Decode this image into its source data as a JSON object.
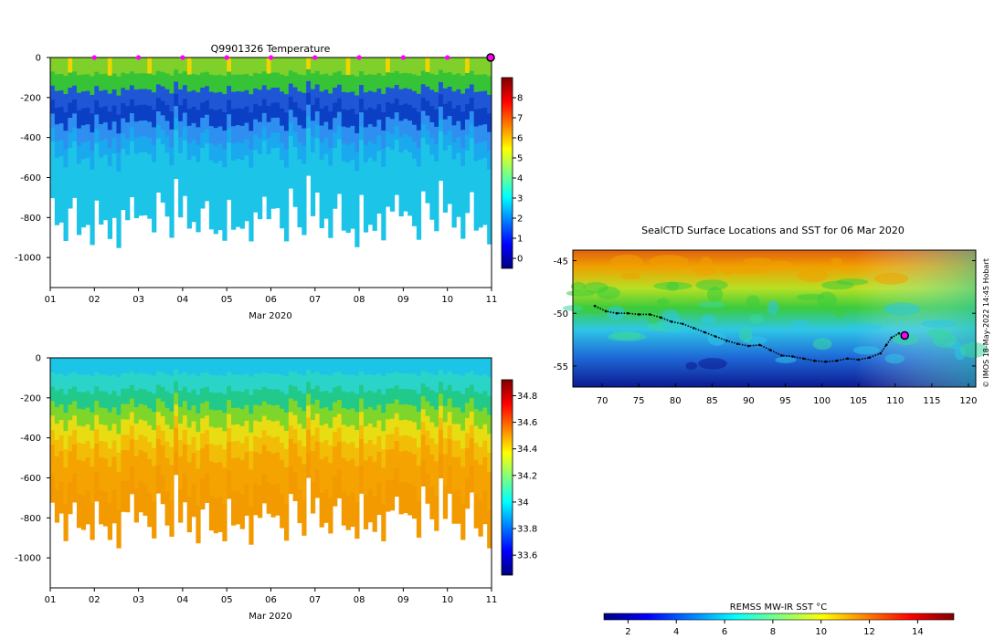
{
  "colors": {
    "jet": [
      "#00007f",
      "#0000ff",
      "#007fff",
      "#00ffff",
      "#7fff7f",
      "#ffff00",
      "#ff7f00",
      "#ff0000",
      "#7f0000"
    ],
    "profile": [
      "#0b1f9e",
      "#1f56d6",
      "#2f8ff0",
      "#1cc4e8",
      "#21c98a",
      "#36c436",
      "#9bd81a",
      "#ecd500",
      "#f5a300",
      "#e56a0b"
    ],
    "sst": [
      "#0c0c82",
      "#1a3acf",
      "#2f7fe8",
      "#2ec6e6",
      "#39d7a0",
      "#3ccc3c",
      "#a8e020",
      "#ffe600",
      "#ff9a1a",
      "#d45a0a",
      "#a01000"
    ],
    "marker": "#ff00ff",
    "track": "#000000"
  },
  "chart_data": [
    {
      "id": "temperature",
      "type": "heatmap",
      "title": "Q9901326  Temperature",
      "xlabel": "Mar 2020",
      "ylabel": "",
      "x_ticks": [
        "01",
        "02",
        "03",
        "04",
        "05",
        "06",
        "07",
        "08",
        "09",
        "10",
        "11"
      ],
      "xlim": [
        1,
        11
      ],
      "y_ticks": [
        0,
        -200,
        -400,
        -600,
        -800,
        -1000
      ],
      "ylim": [
        -1150,
        0
      ],
      "colorbar": {
        "ticks": [
          "0",
          "1",
          "2",
          "3",
          "4",
          "5",
          "6",
          "7",
          "8"
        ],
        "range": [
          -0.5,
          9
        ],
        "label": ""
      },
      "surface_markers_days": [
        2,
        3,
        4,
        5,
        6,
        7,
        8,
        9,
        10
      ],
      "current_position_day": 11,
      "profile_count": 100,
      "max_depth_pattern": [
        -700,
        -840,
        -800,
        -900,
        -750,
        -700,
        -860,
        -870,
        -840,
        -930,
        -700,
        -850,
        -820,
        -880,
        -800,
        -940,
        -770,
        -790,
        -700,
        -800,
        -770,
        -760,
        -830,
        -900,
        -650,
        -720,
        -820,
        -880,
        -600,
        -800
      ]
    },
    {
      "id": "salinity",
      "type": "heatmap",
      "title": "",
      "xlabel": "Mar 2020",
      "ylabel": "",
      "x_ticks": [
        "01",
        "02",
        "03",
        "04",
        "05",
        "06",
        "07",
        "08",
        "09",
        "10",
        "11"
      ],
      "xlim": [
        1,
        11
      ],
      "y_ticks": [
        0,
        -200,
        -400,
        -600,
        -800,
        -1000
      ],
      "ylim": [
        -1150,
        0
      ],
      "colorbar": {
        "ticks": [
          "33.6",
          "33.8",
          "34",
          "34.2",
          "34.4",
          "34.6",
          "34.8"
        ],
        "range": [
          33.45,
          34.92
        ],
        "label": ""
      }
    },
    {
      "id": "sst_map",
      "type": "heatmap",
      "title": "SealCTD Surface Locations and SST for 06 Mar 2020",
      "x_ticks": [
        "70",
        "75",
        "80",
        "85",
        "90",
        "95",
        "100",
        "105",
        "110",
        "115",
        "120"
      ],
      "xlim": [
        66,
        121
      ],
      "y_ticks": [
        "-45",
        "-50",
        "-55"
      ],
      "ylim": [
        -57,
        -44
      ],
      "colorbar": {
        "ticks": [
          "2",
          "4",
          "6",
          "8",
          "10",
          "12",
          "14"
        ],
        "range": [
          1,
          15.5
        ],
        "label": "REMSS MW-IR SST °C"
      },
      "track_lon": [
        69,
        70.5,
        72,
        73.5,
        75,
        76.5,
        78,
        79.5,
        81,
        82.5,
        84,
        85.5,
        87,
        88.5,
        90,
        91.5,
        93,
        94.5,
        96,
        97.5,
        99,
        100.5,
        102,
        103.5,
        105,
        106.5,
        108,
        108.8,
        109.5,
        110.5,
        111.3
      ],
      "track_lat": [
        -49.3,
        -49.8,
        -50,
        -50,
        -50.1,
        -50.1,
        -50.4,
        -50.8,
        -51,
        -51.4,
        -51.8,
        -52.2,
        -52.6,
        -52.9,
        -53.1,
        -53,
        -53.5,
        -54,
        -54.1,
        -54.3,
        -54.5,
        -54.6,
        -54.5,
        -54.3,
        -54.4,
        -54.2,
        -53.8,
        -53,
        -52.3,
        -51.9,
        -52.1
      ],
      "current_lon": 111.3,
      "current_lat": -52.1
    }
  ],
  "watermark": "© IMOS 18-May-2022 14:45 Hobart"
}
